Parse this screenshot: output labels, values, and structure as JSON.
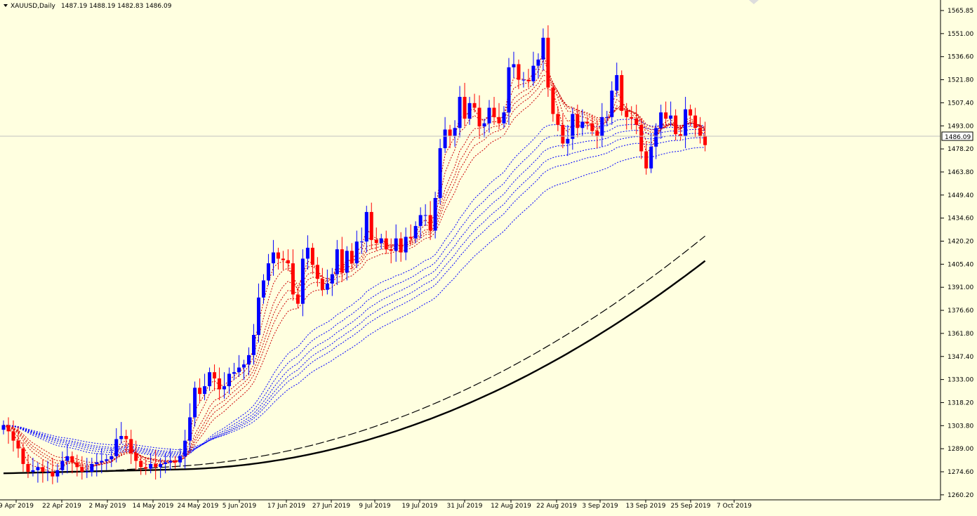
{
  "header": {
    "symbol": "XAUUSD,Daily",
    "ohlc": "1487.19 1488.19 1482.83 1486.09"
  },
  "current_price": "1486.09",
  "colors": {
    "background": "#FFFFE0",
    "bull": "#0000FF",
    "bear": "#FF0000",
    "fast_ma": "#CC0000",
    "slow_ma": "#0000FF",
    "long_ma": "#000000",
    "grid_line": "#C0C0C0"
  },
  "chart_data": {
    "type": "candlestick",
    "instrument": "XAUUSD",
    "timeframe": "Daily",
    "ylim": [
      1260.2,
      1572.5
    ],
    "y_ticks": [
      "1565.85",
      "1551.00",
      "1536.60",
      "1521.80",
      "1507.40",
      "1493.00",
      "1478.20",
      "1463.80",
      "1449.40",
      "1434.60",
      "1420.20",
      "1405.40",
      "1391.00",
      "1376.60",
      "1361.80",
      "1347.40",
      "1333.00",
      "1318.20",
      "1303.80",
      "1289.00",
      "1274.60",
      "1260.20"
    ],
    "x_ticks": [
      "9 Apr 2019",
      "22 Apr 2019",
      "2 May 2019",
      "14 May 2019",
      "24 May 2019",
      "5 Jun 2019",
      "17 Jun 2019",
      "27 Jun 2019",
      "9 Jul 2019",
      "19 Jul 2019",
      "31 Jul 2019",
      "12 Aug 2019",
      "22 Aug 2019",
      "3 Sep 2019",
      "13 Sep 2019",
      "25 Sep 2019",
      "7 Oct 2019"
    ],
    "candles_close": [
      1306,
      1302,
      1296,
      1291,
      1281,
      1276,
      1277,
      1279,
      1276,
      1276,
      1273,
      1277,
      1283,
      1286,
      1282,
      1279,
      1276,
      1276,
      1281,
      1282,
      1283,
      1284,
      1286,
      1297,
      1299,
      1297,
      1288,
      1283,
      1279,
      1278,
      1281,
      1279,
      1281,
      1282,
      1283,
      1282,
      1286,
      1296,
      1311,
      1330,
      1326,
      1331,
      1340,
      1336,
      1329,
      1331,
      1339,
      1340,
      1343,
      1345,
      1351,
      1364,
      1388,
      1399,
      1410,
      1417,
      1413,
      1412,
      1410,
      1390,
      1384,
      1413,
      1420,
      1409,
      1400,
      1393,
      1397,
      1403,
      1419,
      1404,
      1418,
      1410,
      1424,
      1424,
      1443,
      1425,
      1423,
      1426,
      1419,
      1418,
      1426,
      1417,
      1427,
      1426,
      1434,
      1441,
      1441,
      1431,
      1452,
      1484,
      1496,
      1492,
      1497,
      1517,
      1503,
      1513,
      1510,
      1498,
      1500,
      1510,
      1504,
      1500,
      1507,
      1536,
      1538,
      1528,
      1528,
      1527,
      1537,
      1541,
      1555,
      1523,
      1506,
      1499,
      1487,
      1490,
      1506,
      1497,
      1501,
      1500,
      1495,
      1492,
      1504,
      1504,
      1521,
      1531,
      1508,
      1504,
      1503,
      1499,
      1482,
      1471,
      1485,
      1497,
      1507,
      1503,
      1505,
      1493,
      1492,
      1509,
      1505,
      1497,
      1492,
      1486
    ],
    "ma_lines": [
      {
        "role": "fast",
        "count": 6,
        "color": "#CC0000",
        "style": "dotted"
      },
      {
        "role": "slow",
        "count": 6,
        "color": "#0000FF",
        "style": "dotted"
      },
      {
        "role": "long-dashed",
        "color": "#000000",
        "style": "dashed"
      },
      {
        "role": "long-solid",
        "color": "#000000",
        "style": "solid"
      }
    ],
    "grid": false,
    "legend": "none"
  }
}
